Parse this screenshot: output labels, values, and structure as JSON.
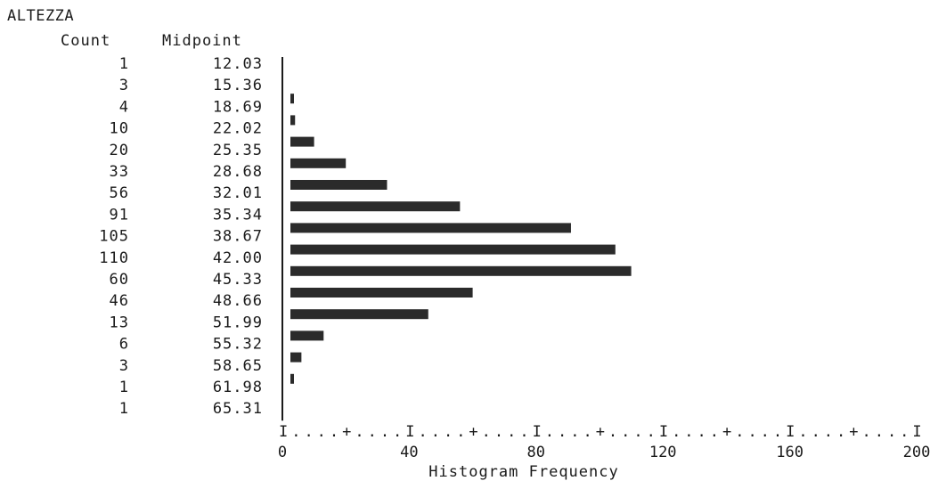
{
  "title": "ALTEZZA",
  "headers": {
    "count": "Count",
    "midpoint": "Midpoint"
  },
  "chart_data": {
    "type": "bar",
    "orientation": "horizontal",
    "title": "ALTEZZA",
    "xlabel": "Histogram Frequency",
    "categories": [
      "12.03",
      "15.36",
      "18.69",
      "22.02",
      "25.35",
      "28.68",
      "32.01",
      "35.34",
      "38.67",
      "42.00",
      "45.33",
      "48.66",
      "51.99",
      "55.32",
      "58.65",
      "61.98",
      "65.31"
    ],
    "values": [
      1,
      3,
      4,
      10,
      20,
      33,
      56,
      91,
      105,
      110,
      60,
      46,
      13,
      6,
      3,
      1,
      1
    ],
    "count_labels": [
      "1",
      "3",
      "4",
      "10",
      "20",
      "33",
      "56",
      "91",
      "105",
      "110",
      "60",
      "46",
      "13",
      "6",
      "3",
      "1",
      "1"
    ],
    "xlim": [
      0,
      200
    ],
    "xticks": [
      0,
      40,
      80,
      120,
      160,
      200
    ],
    "xtick_labels": [
      "0",
      "40",
      "80",
      "120",
      "160",
      "200"
    ],
    "axis_ruler": "I....+....I....+....I....+....I....+....I....+....I",
    "grid": false,
    "bar_color": "#2b2b2b"
  }
}
